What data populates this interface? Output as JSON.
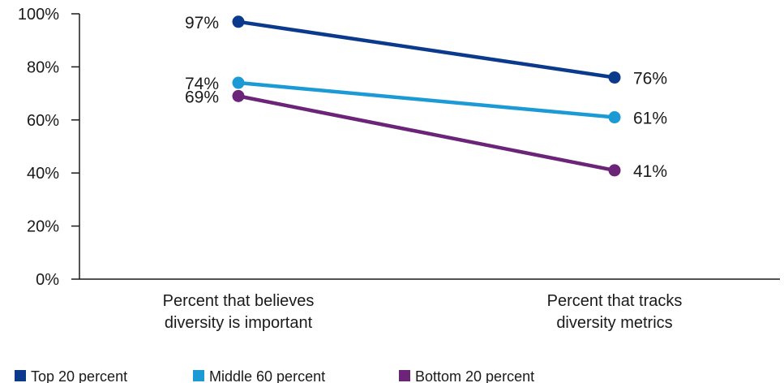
{
  "chart_data": {
    "type": "line",
    "categories": [
      "Percent that believes diversity is important",
      "Percent that tracks diversity metrics"
    ],
    "category_lines": [
      [
        "Percent that believes",
        "diversity is important"
      ],
      [
        "Percent that tracks",
        "diversity metrics"
      ]
    ],
    "series": [
      {
        "name": "Top 20 percent",
        "values": [
          97,
          76
        ],
        "color": "#0b3a8c",
        "labels": [
          "97%",
          "76%"
        ]
      },
      {
        "name": "Middle 60 percent",
        "values": [
          74,
          61
        ],
        "color": "#1b9ad6",
        "labels": [
          "74%",
          "61%"
        ]
      },
      {
        "name": "Bottom 20 percent",
        "values": [
          69,
          41
        ],
        "color": "#6b2478",
        "labels": [
          "69%",
          "41%"
        ]
      }
    ],
    "ylim": [
      0,
      100
    ],
    "yticks": [
      0,
      20,
      40,
      60,
      80,
      100
    ],
    "ytick_labels": [
      "0%",
      "20%",
      "40%",
      "60%",
      "80%",
      "100%"
    ],
    "legend_position": "bottom-left",
    "grid": false,
    "axis_color": "#1a1a1a"
  }
}
